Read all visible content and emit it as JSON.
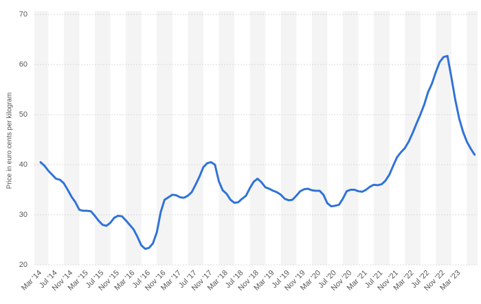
{
  "chart_data": {
    "type": "line",
    "y_axis_label": "Price in euro cents per kilogram",
    "categories": [
      "Mar '14",
      null,
      null,
      null,
      "Jul '14",
      null,
      null,
      null,
      "Nov '14",
      null,
      null,
      null,
      "Mar '15",
      null,
      null,
      null,
      "Jul '15",
      null,
      null,
      null,
      "Nov '15",
      null,
      null,
      null,
      "Mar '16",
      null,
      null,
      null,
      "Jul '16",
      null,
      null,
      null,
      "Nov '16",
      null,
      null,
      null,
      "Mar '17",
      null,
      null,
      null,
      "Jul '17",
      null,
      null,
      null,
      "Nov '17",
      null,
      null,
      null,
      "Mar '18",
      null,
      null,
      null,
      "Jul '18",
      null,
      null,
      null,
      "Nov '18",
      null,
      null,
      null,
      "Mar '19",
      null,
      null,
      null,
      "Jul '19",
      null,
      null,
      null,
      "Nov '19",
      null,
      null,
      null,
      "Mar '20",
      null,
      null,
      null,
      "Jul '20",
      null,
      null,
      null,
      "Nov '20",
      null,
      null,
      null,
      "Mar '21",
      null,
      null,
      null,
      "Jul '21",
      null,
      null,
      null,
      "Nov '21",
      null,
      null,
      null,
      "Mar '22",
      null,
      null,
      null,
      "Jul '22",
      null,
      null,
      null,
      "Nov '22",
      null,
      null,
      null,
      "Mar '23",
      null,
      null,
      null,
      null
    ],
    "series": [
      {
        "name": "Price",
        "color": "#2f72d9",
        "values": [
          40.5,
          39.8,
          38.8,
          38.0,
          37.2,
          37.0,
          36.3,
          35.0,
          33.6,
          32.5,
          31.0,
          30.8,
          30.8,
          30.7,
          29.8,
          28.8,
          28.0,
          27.8,
          28.4,
          29.4,
          29.8,
          29.7,
          28.9,
          28.0,
          27.1,
          25.6,
          23.9,
          23.2,
          23.4,
          24.3,
          26.5,
          30.5,
          33.0,
          33.5,
          34.0,
          33.9,
          33.5,
          33.4,
          33.8,
          34.5,
          36.0,
          37.6,
          39.5,
          40.3,
          40.5,
          40.0,
          36.7,
          34.9,
          34.2,
          33.0,
          32.4,
          32.5,
          33.2,
          33.8,
          35.3,
          36.6,
          37.2,
          36.5,
          35.5,
          35.2,
          34.8,
          34.5,
          34.0,
          33.2,
          32.9,
          33.0,
          33.8,
          34.7,
          35.1,
          35.2,
          34.9,
          34.8,
          34.8,
          34.0,
          32.3,
          31.7,
          31.8,
          32.0,
          33.2,
          34.7,
          35.0,
          35.0,
          34.7,
          34.6,
          35.0,
          35.6,
          36.0,
          35.9,
          36.1,
          36.8,
          38.0,
          39.8,
          41.5,
          42.5,
          43.3,
          44.6,
          46.3,
          48.2,
          50.0,
          52.0,
          54.5,
          56.2,
          58.5,
          60.5,
          61.5,
          61.7,
          57.5,
          53.0,
          49.3,
          46.6,
          44.6,
          43.2,
          42.0
        ]
      }
    ],
    "ylim": [
      20,
      70
    ],
    "yticks": [
      20,
      30,
      40,
      50,
      60,
      70
    ],
    "grid": true
  }
}
